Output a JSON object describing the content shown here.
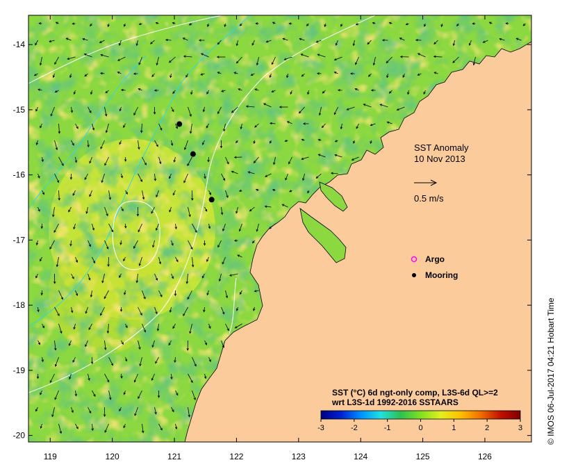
{
  "map": {
    "lon_ticks": [
      "119",
      "120",
      "121",
      "122",
      "123",
      "124",
      "125",
      "126"
    ],
    "lat_ticks": [
      "-14",
      "-15",
      "-16",
      "-17",
      "-18",
      "-19",
      "-20"
    ],
    "lon_range": [
      118.65,
      126.75
    ],
    "lat_range": [
      -20.1,
      -13.55
    ]
  },
  "annotation": {
    "title": "SST Anomaly",
    "date": "10 Nov 2013",
    "arrow_scale_label": "0.5 m/s"
  },
  "legend": {
    "argo_label": "Argo",
    "mooring_label": "Mooring",
    "argo_color": "#ff00ff",
    "mooring_color": "#000000"
  },
  "moorings": [
    {
      "lon": 121.08,
      "lat": -15.22
    },
    {
      "lon": 121.3,
      "lat": -15.68
    },
    {
      "lon": 121.6,
      "lat": -16.38
    }
  ],
  "colorbar": {
    "title_line1": "SST (°C) 6d ngt-only comp, L3S-6d QL>=2",
    "title_line2": "wrt L3S-1d 1992-2016 SSTAARS",
    "ticks": [
      "-3",
      "-2",
      "-1",
      "0",
      "1",
      "2",
      "3"
    ],
    "stops": [
      "#000080",
      "#0020d0",
      "#0090ff",
      "#20e0e0",
      "#30c050",
      "#80e020",
      "#e0f020",
      "#ffc000",
      "#f07000",
      "#c01000",
      "#800000"
    ]
  },
  "footer": {
    "credit": "© IMOS 06-Jul-2017 04:21 Hobart Time"
  },
  "colors": {
    "land": "#fbcb9b",
    "sea_base": "#8cd840",
    "contour": "#ffffff",
    "bathymetry": "#30d8e0"
  }
}
